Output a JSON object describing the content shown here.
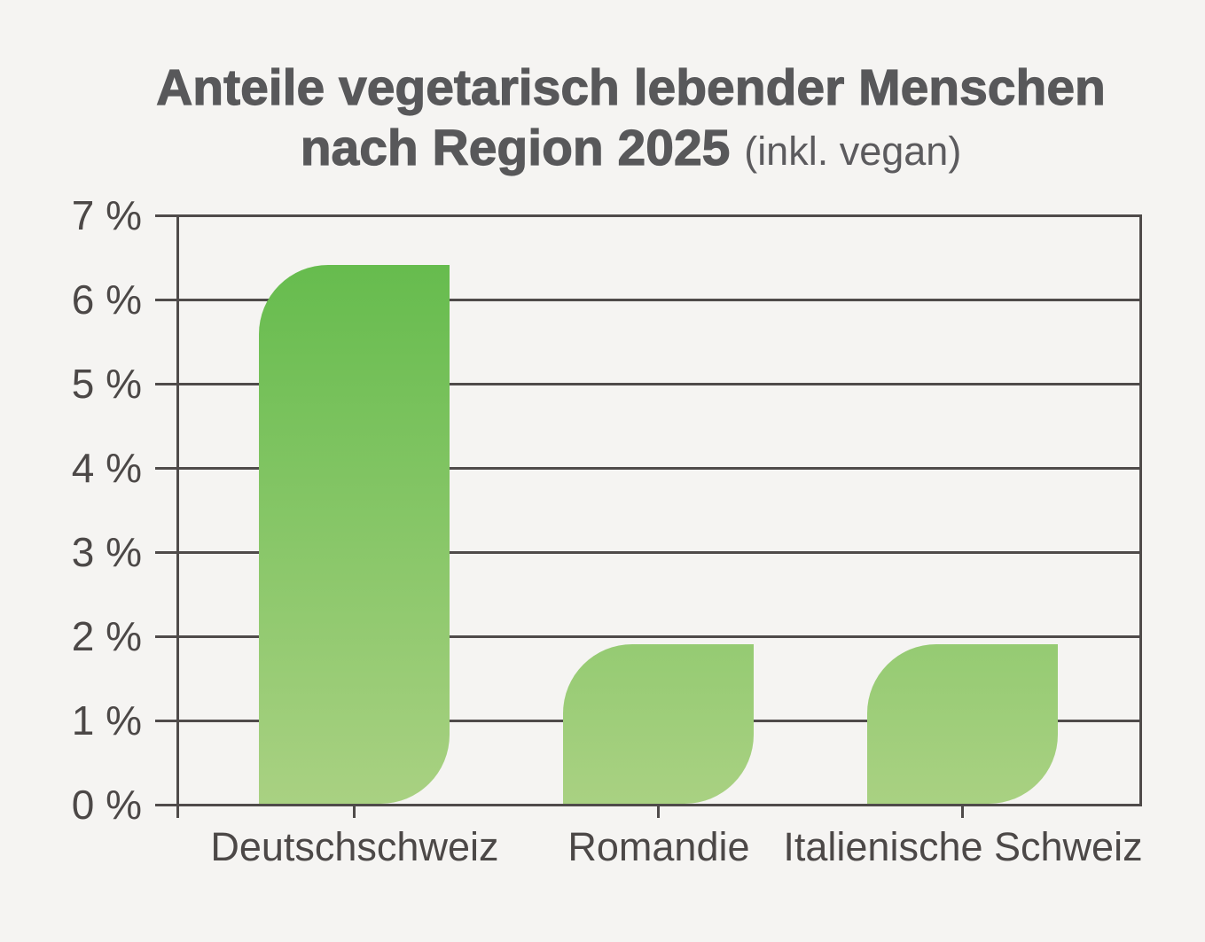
{
  "background": "#f5f4f2",
  "title": {
    "line1": "Anteile vegetarisch lebender Menschen",
    "line2_bold": "nach Region 2025",
    "line2_note": "(inkl. vegan)"
  },
  "chart_data": {
    "type": "bar",
    "title": "Anteile vegetarisch lebender Menschen nach Region 2025 (inkl. vegan)",
    "categories": [
      "Deutschschweiz",
      "Romandie",
      "Italienische Schweiz"
    ],
    "values": [
      6.4,
      1.9,
      1.9
    ],
    "unit": "%",
    "xlabel": "",
    "ylabel": "",
    "ylim": [
      0,
      7
    ],
    "ytick_step": 1,
    "ytick_labels": [
      "0 %",
      "1 %",
      "2 %",
      "3 %",
      "4 %",
      "5 %",
      "6 %",
      "7 %"
    ],
    "grid": true,
    "legend": false,
    "colors": {
      "bar_gradient_top": "#60ba49",
      "bar_gradient_bottom": "#a9d182",
      "axis_line": "#4f4b4a",
      "tick_label": "#4c4847",
      "title_text": "#58585a"
    }
  }
}
